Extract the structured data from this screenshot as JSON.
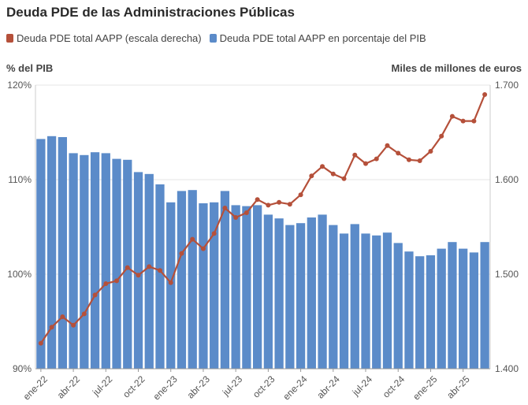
{
  "chart_data": {
    "type": "bar+line",
    "title": "Deuda PDE de las Administraciones Públicas",
    "legend": [
      {
        "name": "Deuda PDE total AAPP (escala derecha)",
        "color": "#b5503a",
        "type": "line"
      },
      {
        "name": "Deuda PDE total AAPP en porcentaje del PIB",
        "color": "#5b8bc9",
        "type": "bar"
      }
    ],
    "ylabel_left": "% del PIB",
    "ylabel_right": "Miles de millones de euros",
    "ylim_left": [
      90,
      120
    ],
    "ylim_right": [
      1400,
      1700
    ],
    "yticks_left": [
      {
        "value": 90,
        "label": "90%"
      },
      {
        "value": 100,
        "label": "100%"
      },
      {
        "value": 110,
        "label": "110%"
      },
      {
        "value": 120,
        "label": "120%"
      }
    ],
    "yticks_right": [
      {
        "value": 1400,
        "label": "1.400"
      },
      {
        "value": 1500,
        "label": "1.500"
      },
      {
        "value": 1600,
        "label": "1.600"
      },
      {
        "value": 1700,
        "label": "1.700"
      }
    ],
    "categories": [
      "ene-22",
      "feb-22",
      "mar-22",
      "abr-22",
      "may-22",
      "jun-22",
      "jul-22",
      "ago-22",
      "sep-22",
      "oct-22",
      "nov-22",
      "dic-22",
      "ene-23",
      "feb-23",
      "mar-23",
      "abr-23",
      "may-23",
      "jun-23",
      "jul-23",
      "ago-23",
      "sep-23",
      "oct-23",
      "nov-23",
      "dic-23",
      "ene-24",
      "feb-24",
      "mar-24",
      "abr-24",
      "may-24",
      "jun-24",
      "jul-24",
      "ago-24",
      "sep-24",
      "oct-24",
      "nov-24",
      "dic-24",
      "ene-25",
      "feb-25",
      "mar-25",
      "abr-25",
      "may-25",
      "jun-25"
    ],
    "xtick_labels": [
      "ene-22",
      "abr-22",
      "jul-22",
      "oct-22",
      "ene-23",
      "abr-23",
      "jul-23",
      "oct-23",
      "ene-24",
      "abr-24",
      "jul-24",
      "oct-24",
      "ene-25",
      "abr-25"
    ],
    "series": [
      {
        "name": "Deuda PDE total AAPP en porcentaje del PIB",
        "type": "bar",
        "axis": "left",
        "values": [
          114.3,
          114.6,
          114.5,
          112.8,
          112.6,
          112.9,
          112.8,
          112.2,
          112.1,
          110.8,
          110.6,
          109.5,
          107.6,
          108.8,
          108.9,
          107.5,
          107.6,
          108.8,
          107.3,
          107.2,
          107.3,
          106.3,
          105.9,
          105.2,
          105.4,
          106.0,
          106.3,
          105.2,
          104.3,
          105.3,
          104.3,
          104.1,
          104.4,
          103.3,
          102.4,
          101.9,
          102.0,
          102.7,
          103.4,
          102.7,
          102.3,
          103.4
        ]
      },
      {
        "name": "Deuda PDE total AAPP (escala derecha)",
        "type": "line",
        "axis": "right",
        "values": [
          1427,
          1444,
          1455,
          1446,
          1458,
          1478,
          1490,
          1493,
          1507,
          1499,
          1508,
          1504,
          1491,
          1522,
          1537,
          1527,
          1543,
          1570,
          1560,
          1565,
          1579,
          1573,
          1576,
          1574,
          1584,
          1604,
          1614,
          1606,
          1601,
          1626,
          1617,
          1622,
          1636,
          1628,
          1621,
          1620,
          1630,
          1646,
          1667,
          1662,
          1662,
          1690
        ]
      }
    ]
  }
}
